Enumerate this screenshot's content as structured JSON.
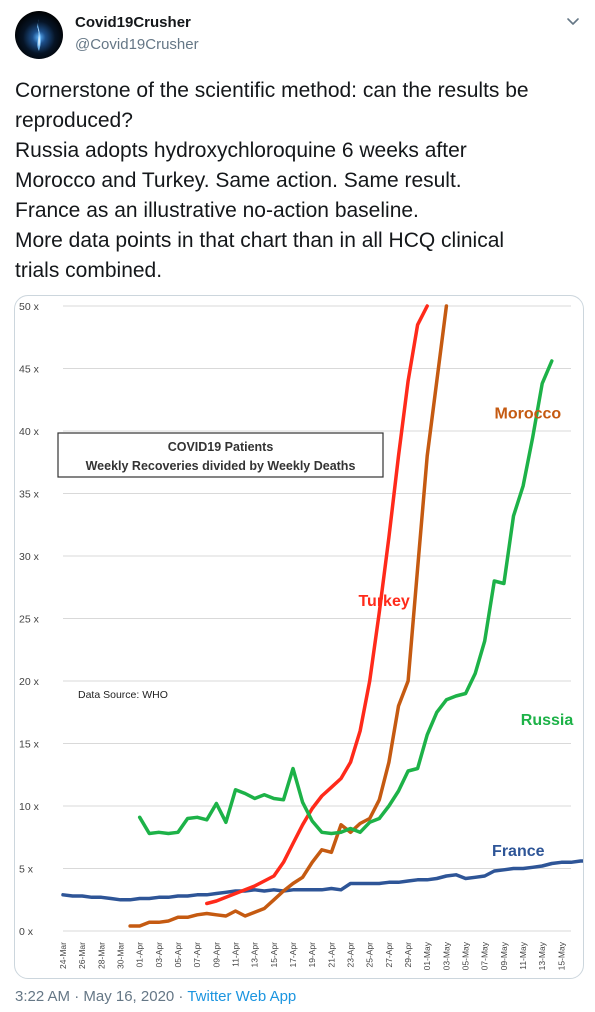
{
  "tweet": {
    "author_name": "Covid19Crusher",
    "author_handle": "@Covid19Crusher",
    "menu_icon": "chevron-down-icon",
    "avatar_icon": "blue-flame-avatar",
    "text_lines": [
      "Cornerstone of the scientific method: can the results be",
      "reproduced?",
      "Russia adopts hydroxychloroquine 6 weeks after",
      "Morocco and Turkey. Same action. Same result.",
      "France as an illustrative no-action baseline.",
      "More data points in that chart than in all HCQ clinical",
      "trials combined."
    ],
    "timestamp": "3:22 AM · May 16, 2020 · ",
    "source": "Twitter Web App",
    "colors": {
      "text": "#14171a",
      "secondary": "#657786",
      "link": "#1b95e0",
      "border": "#ccd6dd"
    }
  },
  "chart_data": {
    "type": "line",
    "title": "COVID19 Patients",
    "subtitle": "Weekly Recoveries divided by Weekly Deaths",
    "annotation": "Data Source: WHO",
    "xlabel": "",
    "ylabel": "",
    "ylim": [
      0,
      50
    ],
    "ytick_suffix": " x",
    "yticks": [
      0,
      5,
      10,
      15,
      20,
      25,
      30,
      35,
      40,
      45,
      50
    ],
    "grid": true,
    "x_tick_labels": [
      "24-Mar",
      "26-Mar",
      "28-Mar",
      "30-Mar",
      "01-Apr",
      "03-Apr",
      "05-Apr",
      "07-Apr",
      "09-Apr",
      "11-Apr",
      "13-Apr",
      "15-Apr",
      "17-Apr",
      "19-Apr",
      "21-Apr",
      "23-Apr",
      "25-Apr",
      "27-Apr",
      "29-Apr",
      "01-May",
      "03-May",
      "05-May",
      "07-May",
      "09-May",
      "11-May",
      "13-May",
      "15-May"
    ],
    "x_start": "2020-03-24",
    "legend": "labels placed next to each line",
    "series": [
      {
        "name": "France",
        "color": "#2e5597",
        "points": [
          [
            "2020-03-24",
            2.9
          ],
          [
            "2020-03-25",
            2.8
          ],
          [
            "2020-03-26",
            2.8
          ],
          [
            "2020-03-27",
            2.7
          ],
          [
            "2020-03-28",
            2.7
          ],
          [
            "2020-03-29",
            2.6
          ],
          [
            "2020-03-30",
            2.5
          ],
          [
            "2020-03-31",
            2.5
          ],
          [
            "2020-04-01",
            2.6
          ],
          [
            "2020-04-02",
            2.6
          ],
          [
            "2020-04-03",
            2.7
          ],
          [
            "2020-04-04",
            2.7
          ],
          [
            "2020-04-05",
            2.8
          ],
          [
            "2020-04-06",
            2.8
          ],
          [
            "2020-04-07",
            2.9
          ],
          [
            "2020-04-08",
            2.9
          ],
          [
            "2020-04-09",
            3.0
          ],
          [
            "2020-04-10",
            3.1
          ],
          [
            "2020-04-11",
            3.2
          ],
          [
            "2020-04-12",
            3.2
          ],
          [
            "2020-04-13",
            3.3
          ],
          [
            "2020-04-14",
            3.2
          ],
          [
            "2020-04-15",
            3.3
          ],
          [
            "2020-04-16",
            3.2
          ],
          [
            "2020-04-17",
            3.3
          ],
          [
            "2020-04-18",
            3.3
          ],
          [
            "2020-04-19",
            3.3
          ],
          [
            "2020-04-20",
            3.3
          ],
          [
            "2020-04-21",
            3.4
          ],
          [
            "2020-04-22",
            3.3
          ],
          [
            "2020-04-23",
            3.8
          ],
          [
            "2020-04-24",
            3.8
          ],
          [
            "2020-04-25",
            3.8
          ],
          [
            "2020-04-26",
            3.8
          ],
          [
            "2020-04-27",
            3.9
          ],
          [
            "2020-04-28",
            3.9
          ],
          [
            "2020-04-29",
            4.0
          ],
          [
            "2020-04-30",
            4.1
          ],
          [
            "2020-05-01",
            4.1
          ],
          [
            "2020-05-02",
            4.2
          ],
          [
            "2020-05-03",
            4.4
          ],
          [
            "2020-05-04",
            4.5
          ],
          [
            "2020-05-05",
            4.2
          ],
          [
            "2020-05-06",
            4.3
          ],
          [
            "2020-05-07",
            4.4
          ],
          [
            "2020-05-08",
            4.8
          ],
          [
            "2020-05-09",
            4.9
          ],
          [
            "2020-05-10",
            5.0
          ],
          [
            "2020-05-11",
            5.0
          ],
          [
            "2020-05-12",
            5.1
          ],
          [
            "2020-05-13",
            5.2
          ],
          [
            "2020-05-14",
            5.4
          ],
          [
            "2020-05-15",
            5.5
          ],
          [
            "2020-05-16",
            5.5
          ],
          [
            "2020-05-17",
            5.6
          ],
          [
            "2020-05-18",
            5.6
          ]
        ]
      },
      {
        "name": "Morocco",
        "color": "#c55a11",
        "points": [
          [
            "2020-03-31",
            0.4
          ],
          [
            "2020-04-01",
            0.4
          ],
          [
            "2020-04-02",
            0.7
          ],
          [
            "2020-04-03",
            0.7
          ],
          [
            "2020-04-04",
            0.8
          ],
          [
            "2020-04-05",
            1.1
          ],
          [
            "2020-04-06",
            1.1
          ],
          [
            "2020-04-07",
            1.3
          ],
          [
            "2020-04-08",
            1.4
          ],
          [
            "2020-04-09",
            1.3
          ],
          [
            "2020-04-10",
            1.2
          ],
          [
            "2020-04-11",
            1.6
          ],
          [
            "2020-04-12",
            1.2
          ],
          [
            "2020-04-13",
            1.5
          ],
          [
            "2020-04-14",
            1.8
          ],
          [
            "2020-04-15",
            2.5
          ],
          [
            "2020-04-16",
            3.2
          ],
          [
            "2020-04-17",
            3.8
          ],
          [
            "2020-04-18",
            4.3
          ],
          [
            "2020-04-19",
            5.5
          ],
          [
            "2020-04-20",
            6.5
          ],
          [
            "2020-04-21",
            6.3
          ],
          [
            "2020-04-22",
            8.5
          ],
          [
            "2020-04-23",
            7.9
          ],
          [
            "2020-04-24",
            8.6
          ],
          [
            "2020-04-25",
            9.0
          ],
          [
            "2020-04-26",
            10.5
          ],
          [
            "2020-04-27",
            13.5
          ],
          [
            "2020-04-28",
            18.0
          ],
          [
            "2020-04-29",
            20.0
          ],
          [
            "2020-04-30",
            29.0
          ],
          [
            "2020-05-01",
            38.0
          ],
          [
            "2020-05-02",
            44.0
          ],
          [
            "2020-05-03",
            50.0
          ]
        ]
      },
      {
        "name": "Turkey",
        "color": "#ff2a1a",
        "points": [
          [
            "2020-04-08",
            2.2
          ],
          [
            "2020-04-09",
            2.4
          ],
          [
            "2020-04-10",
            2.7
          ],
          [
            "2020-04-11",
            3.0
          ],
          [
            "2020-04-12",
            3.3
          ],
          [
            "2020-04-13",
            3.6
          ],
          [
            "2020-04-14",
            4.0
          ],
          [
            "2020-04-15",
            4.4
          ],
          [
            "2020-04-16",
            5.5
          ],
          [
            "2020-04-17",
            7.0
          ],
          [
            "2020-04-18",
            8.5
          ],
          [
            "2020-04-19",
            9.8
          ],
          [
            "2020-04-20",
            10.8
          ],
          [
            "2020-04-21",
            11.5
          ],
          [
            "2020-04-22",
            12.2
          ],
          [
            "2020-04-23",
            13.5
          ],
          [
            "2020-04-24",
            16.0
          ],
          [
            "2020-04-25",
            20.0
          ],
          [
            "2020-04-26",
            25.5
          ],
          [
            "2020-04-27",
            31.5
          ],
          [
            "2020-04-28",
            38.0
          ],
          [
            "2020-04-29",
            44.0
          ],
          [
            "2020-04-30",
            48.5
          ],
          [
            "2020-05-01",
            50.0
          ]
        ]
      },
      {
        "name": "Russia",
        "color": "#1db248",
        "points": [
          [
            "2020-04-01",
            9.1
          ],
          [
            "2020-04-02",
            7.8
          ],
          [
            "2020-04-03",
            7.9
          ],
          [
            "2020-04-04",
            7.8
          ],
          [
            "2020-04-05",
            7.9
          ],
          [
            "2020-04-06",
            9.0
          ],
          [
            "2020-04-07",
            9.1
          ],
          [
            "2020-04-08",
            8.9
          ],
          [
            "2020-04-09",
            10.2
          ],
          [
            "2020-04-10",
            8.7
          ],
          [
            "2020-04-11",
            11.3
          ],
          [
            "2020-04-12",
            11.0
          ],
          [
            "2020-04-13",
            10.6
          ],
          [
            "2020-04-14",
            10.9
          ],
          [
            "2020-04-15",
            10.6
          ],
          [
            "2020-04-16",
            10.5
          ],
          [
            "2020-04-17",
            13.0
          ],
          [
            "2020-04-18",
            10.3
          ],
          [
            "2020-04-19",
            8.8
          ],
          [
            "2020-04-20",
            7.9
          ],
          [
            "2020-04-21",
            7.8
          ],
          [
            "2020-04-22",
            7.9
          ],
          [
            "2020-04-23",
            8.2
          ],
          [
            "2020-04-24",
            7.9
          ],
          [
            "2020-04-25",
            8.7
          ],
          [
            "2020-04-26",
            9.0
          ],
          [
            "2020-04-27",
            10.0
          ],
          [
            "2020-04-28",
            11.2
          ],
          [
            "2020-04-29",
            12.8
          ],
          [
            "2020-04-30",
            13.0
          ],
          [
            "2020-05-01",
            15.7
          ],
          [
            "2020-05-02",
            17.5
          ],
          [
            "2020-05-03",
            18.5
          ],
          [
            "2020-05-04",
            18.8
          ],
          [
            "2020-05-05",
            19.0
          ],
          [
            "2020-05-06",
            20.6
          ],
          [
            "2020-05-07",
            23.2
          ],
          [
            "2020-05-08",
            28.0
          ],
          [
            "2020-05-09",
            27.8
          ],
          [
            "2020-05-10",
            33.2
          ],
          [
            "2020-05-11",
            35.6
          ],
          [
            "2020-05-12",
            39.5
          ],
          [
            "2020-05-13",
            43.8
          ],
          [
            "2020-05-14",
            45.6
          ]
        ]
      }
    ]
  }
}
